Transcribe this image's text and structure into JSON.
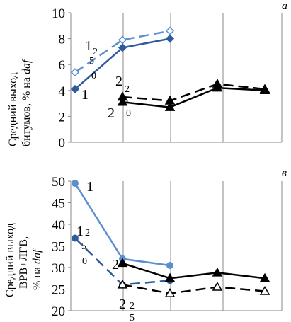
{
  "chart_data": [
    {
      "type": "line",
      "panel_label": "а",
      "ylabel_line1": "Средний выход",
      "ylabel_line2_prefix": "битумов, % на ",
      "ylabel_line2_italic": "daf",
      "ylim": [
        0,
        10
      ],
      "yticks": [
        0,
        2,
        4,
        6,
        8,
        10
      ],
      "x": [
        1,
        2,
        3,
        4,
        5
      ],
      "grid": "vertical",
      "series": [
        {
          "id": "s1",
          "values": [
            4.1,
            7.3,
            8.0,
            null,
            null
          ],
          "color": "#2E5A9E",
          "dash": "solid",
          "marker": "diamond-filled"
        },
        {
          "id": "s1_250",
          "values": [
            5.4,
            7.9,
            8.6,
            null,
            null
          ],
          "color": "#5B8FD0",
          "dash": "dashed",
          "marker": "diamond-open"
        },
        {
          "id": "s2",
          "values": [
            null,
            3.1,
            2.7,
            4.2,
            4.0
          ],
          "color": "#000000",
          "dash": "solid",
          "marker": "triangle-filled"
        },
        {
          "id": "s2_250",
          "values": [
            null,
            3.5,
            3.2,
            4.5,
            4.1
          ],
          "color": "#000000",
          "dash": "dashed",
          "marker": "triangle-filled"
        }
      ],
      "annotations": [
        {
          "id": "a-1-25-0",
          "main": "1",
          "sub1": "2",
          "sub2": "5",
          "sub3": "0"
        },
        {
          "id": "a-1",
          "main": "1"
        },
        {
          "id": "a-2-25-0",
          "main": "2",
          "sub1": "2",
          "sub2": "5",
          "sub3": "0"
        },
        {
          "id": "a-2",
          "main": "2"
        }
      ]
    },
    {
      "type": "line",
      "panel_label": "в",
      "ylabel_line1": "Средний выход",
      "ylabel_line2": "ВРВ+ЛГВ,",
      "ylabel_line3_prefix": "% на ",
      "ylabel_line3_italic": "daf",
      "ylim": [
        20,
        50
      ],
      "yticks": [
        20,
        25,
        30,
        35,
        40,
        45,
        50
      ],
      "x": [
        1,
        2,
        3,
        4,
        5
      ],
      "grid": "vertical",
      "series": [
        {
          "id": "s1",
          "values": [
            49.5,
            32.0,
            30.5,
            null,
            null
          ],
          "color": "#5B8FD0",
          "dash": "solid",
          "marker": "circle-filled"
        },
        {
          "id": "s1_250",
          "values": [
            36.8,
            26.0,
            27.0,
            null,
            null
          ],
          "color": "#2E5A9E",
          "dash": "dashed",
          "marker": "circle-filled"
        },
        {
          "id": "s2",
          "values": [
            null,
            31.0,
            27.5,
            28.8,
            27.5
          ],
          "color": "#000000",
          "dash": "solid",
          "marker": "triangle-filled"
        },
        {
          "id": "s2_250",
          "values": [
            null,
            26.0,
            24.0,
            25.5,
            24.5
          ],
          "color": "#000000",
          "dash": "dashed",
          "marker": "triangle-open"
        }
      ],
      "annotations": [
        {
          "id": "b-1",
          "main": "1"
        },
        {
          "id": "b-1-25-0",
          "main": "1",
          "sub1": "2",
          "sub2": "5",
          "sub3": "0"
        },
        {
          "id": "b-2",
          "main": "2"
        },
        {
          "id": "b-2-25",
          "main": "2",
          "sub1": "2",
          "sub2": "5"
        }
      ]
    }
  ]
}
